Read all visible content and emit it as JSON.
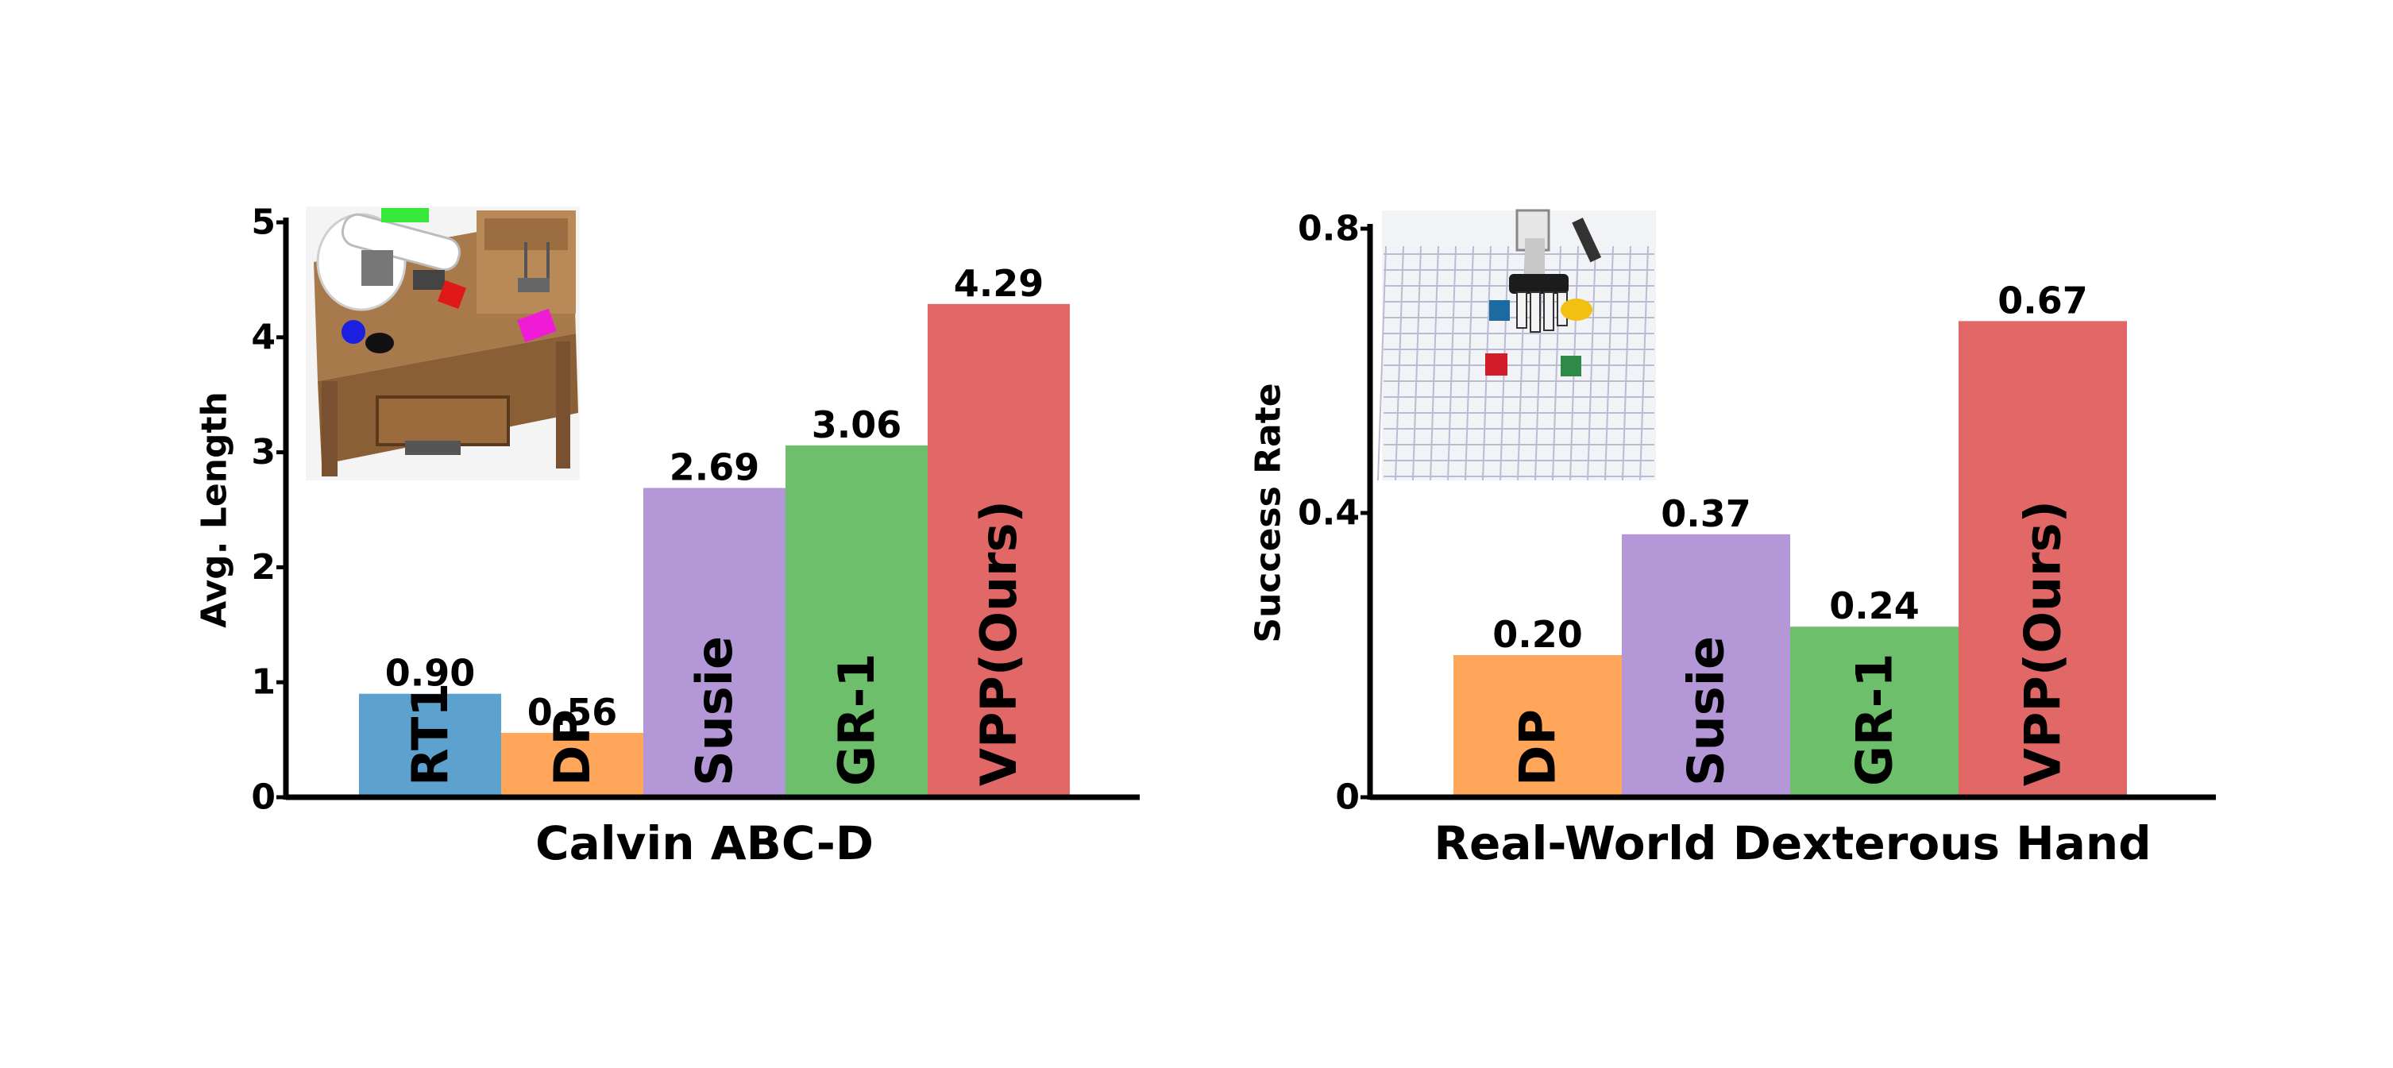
{
  "chart_data": [
    {
      "type": "bar",
      "xlabel": "Calvin ABC-D",
      "ylabel": "Avg. Length",
      "ylim": [
        0,
        5
      ],
      "yticks": [
        0,
        1,
        2,
        3,
        4,
        5
      ],
      "categories": [
        "RT1",
        "DP",
        "Susie",
        "GR-1",
        "VPP(Ours)"
      ],
      "values": [
        0.9,
        0.56,
        2.69,
        3.06,
        4.29
      ],
      "value_labels": [
        "0.90",
        "0.56",
        "2.69",
        "3.06",
        "4.29"
      ],
      "colors": [
        "#5DA2CF",
        "#FFA65A",
        "#B497D6",
        "#6DBF6B",
        "#E26868"
      ],
      "grid": false,
      "inset_image": "calvin-simulation-robot-arm-desk"
    },
    {
      "type": "bar",
      "xlabel": "Real-World Dexterous Hand",
      "ylabel": "Success Rate",
      "ylim": [
        0,
        0.8
      ],
      "yticks": [
        "0",
        "0.4",
        "0.8"
      ],
      "categories": [
        "DP",
        "Susie",
        "GR-1",
        "VPP(Ours)"
      ],
      "values": [
        0.2,
        0.37,
        0.24,
        0.67
      ],
      "value_labels": [
        "0.20",
        "0.37",
        "0.24",
        "0.67"
      ],
      "colors": [
        "#FFA65A",
        "#B497D6",
        "#6DBF6B",
        "#E26868"
      ],
      "grid": false,
      "inset_image": "real-robot-dexterous-hand-grid-table"
    }
  ]
}
